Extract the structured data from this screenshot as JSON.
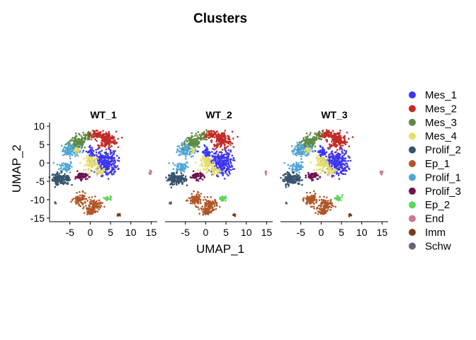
{
  "chart_data": {
    "type": "scatter",
    "title": "Clusters",
    "xlabel": "UMAP_1",
    "ylabel": "UMAP_2",
    "xlim": [
      -10,
      16.5
    ],
    "ylim": [
      -16,
      11
    ],
    "x_ticks": [
      -5,
      0,
      5,
      10,
      15
    ],
    "y_ticks": [
      10,
      5,
      0,
      -5,
      -10,
      -15
    ],
    "grid": false,
    "legend_position": "right",
    "panels": [
      {
        "name": "WT_1"
      },
      {
        "name": "WT_2"
      },
      {
        "name": "WT_3"
      }
    ],
    "series": [
      {
        "name": "Mes_1",
        "color": "#3D35F2"
      },
      {
        "name": "Mes_2",
        "color": "#C42B26"
      },
      {
        "name": "Mes_3",
        "color": "#5F8A45"
      },
      {
        "name": "Mes_4",
        "color": "#E6DE6A"
      },
      {
        "name": "Prolif_2",
        "color": "#36546E"
      },
      {
        "name": "Ep_1",
        "color": "#B15628"
      },
      {
        "name": "Prolif_1",
        "color": "#4EA5D9"
      },
      {
        "name": "Prolif_3",
        "color": "#6E1253"
      },
      {
        "name": "Ep_2",
        "color": "#5CD65C"
      },
      {
        "name": "End",
        "color": "#CC7A91"
      },
      {
        "name": "Imm",
        "color": "#7A3C15"
      },
      {
        "name": "Schw",
        "color": "#6B6178"
      }
    ]
  }
}
